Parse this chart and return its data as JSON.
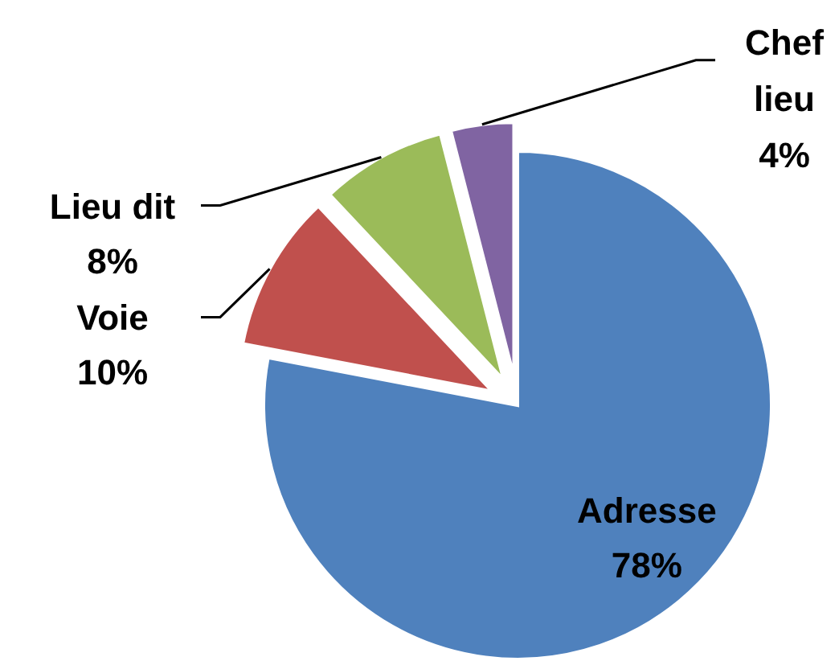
{
  "chart_data": {
    "type": "pie",
    "categories": [
      "Adresse",
      "Voie",
      "Lieu dit",
      "Chef lieu"
    ],
    "values": [
      78,
      10,
      8,
      4
    ],
    "colors": [
      "#4f81bd",
      "#c0504d",
      "#9bbb59",
      "#8064a2"
    ],
    "value_labels": [
      "78%",
      "10%",
      "8%",
      "4%"
    ],
    "legend": false
  }
}
